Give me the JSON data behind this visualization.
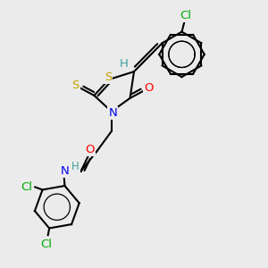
{
  "bg_color": "#ebebeb",
  "atom_colors": {
    "C": "#000000",
    "H": "#40a0a0",
    "N": "#0000ee",
    "O": "#ff0000",
    "S": "#c8a000",
    "Cl": "#00aa00"
  },
  "bond_color": "#000000",
  "bond_width": 1.5,
  "font_size": 9.5
}
